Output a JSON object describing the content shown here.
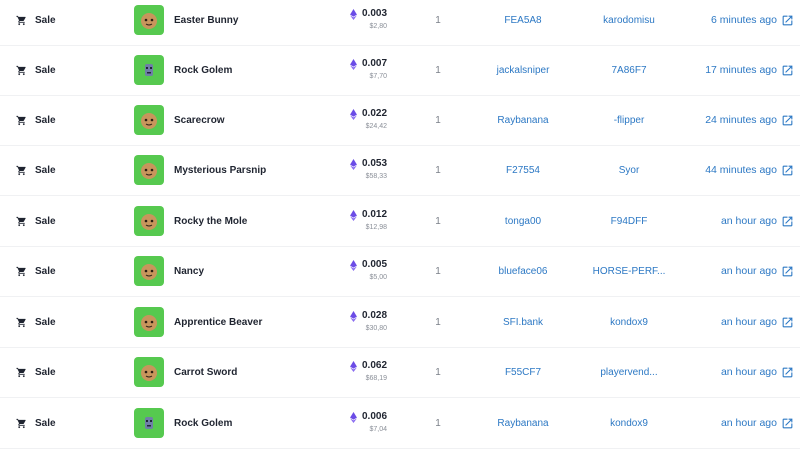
{
  "rows": [
    {
      "type": "Sale",
      "item": "Easter Bunny",
      "eth": "0.003",
      "usd": "$2,80",
      "qty": "1",
      "from": "FEA5A8",
      "to": "karodomisu",
      "time": "6 minutes ago",
      "thumb_icon": "bunny-avatar-icon"
    },
    {
      "type": "Sale",
      "item": "Rock Golem",
      "eth": "0.007",
      "usd": "$7,70",
      "qty": "1",
      "from": "jackalsniper",
      "to": "7A86F7",
      "time": "17 minutes ago",
      "thumb_icon": "rock-golem-avatar-icon"
    },
    {
      "type": "Sale",
      "item": "Scarecrow",
      "eth": "0.022",
      "usd": "$24,42",
      "qty": "1",
      "from": "Raybanana",
      "to": "-flipper",
      "time": "24 minutes ago",
      "thumb_icon": "scarecrow-avatar-icon"
    },
    {
      "type": "Sale",
      "item": "Mysterious Parsnip",
      "eth": "0.053",
      "usd": "$58,33",
      "qty": "1",
      "from": "F27554",
      "to": "Syor",
      "time": "44 minutes ago",
      "thumb_icon": "parsnip-avatar-icon"
    },
    {
      "type": "Sale",
      "item": "Rocky the Mole",
      "eth": "0.012",
      "usd": "$12,98",
      "qty": "1",
      "from": "tonga00",
      "to": "F94DFF",
      "time": "an hour ago",
      "thumb_icon": "mole-avatar-icon"
    },
    {
      "type": "Sale",
      "item": "Nancy",
      "eth": "0.005",
      "usd": "$5,00",
      "qty": "1",
      "from": "blueface06",
      "to": "HORSE-PERF...",
      "time": "an hour ago",
      "thumb_icon": "nancy-avatar-icon"
    },
    {
      "type": "Sale",
      "item": "Apprentice Beaver",
      "eth": "0.028",
      "usd": "$30,80",
      "qty": "1",
      "from": "SFI.bank",
      "to": "kondox9",
      "time": "an hour ago",
      "thumb_icon": "beaver-avatar-icon"
    },
    {
      "type": "Sale",
      "item": "Carrot Sword",
      "eth": "0.062",
      "usd": "$68,19",
      "qty": "1",
      "from": "F55CF7",
      "to": "playervend...",
      "time": "an hour ago",
      "thumb_icon": "carrot-sword-avatar-icon"
    },
    {
      "type": "Sale",
      "item": "Rock Golem",
      "eth": "0.006",
      "usd": "$7,04",
      "qty": "1",
      "from": "Raybanana",
      "to": "kondox9",
      "time": "an hour ago",
      "thumb_icon": "rock-golem-avatar-icon"
    }
  ],
  "colors": {
    "link": "#2c78c4",
    "thumb_bg": "#56c94f",
    "eth": "#6b4ce6",
    "text": "#1f2430"
  }
}
